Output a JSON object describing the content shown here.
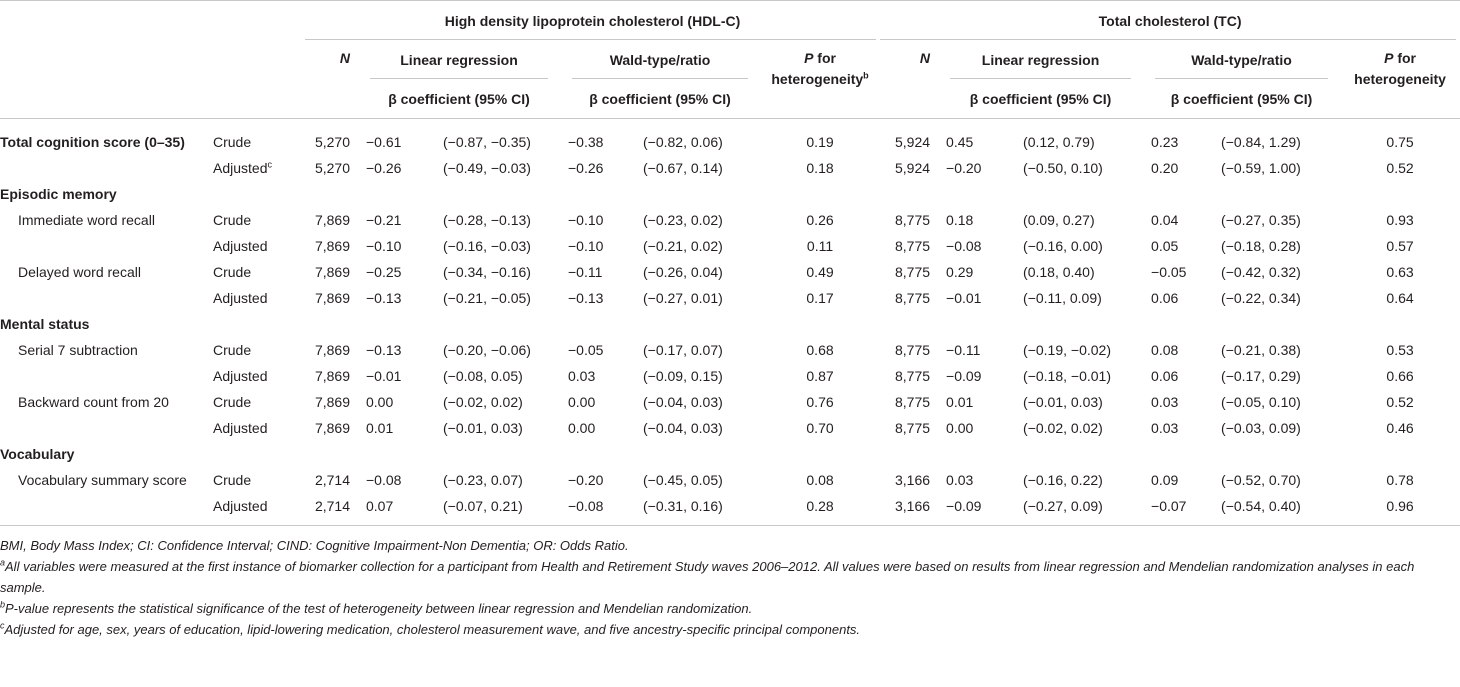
{
  "table": {
    "groups": [
      "High density lipoprotein cholesterol (HDL-C)",
      "Total cholesterol (TC)"
    ],
    "header": {
      "n": "N",
      "linear": "Linear regression",
      "wald": "Wald-type/ratio",
      "beta": "β coefficient (95% CI)",
      "p": "P",
      "p_rest": "for heterogeneity",
      "p_sup": "b"
    },
    "rows": [
      {
        "label": "Total cognition score (0–35)",
        "bold": true,
        "model": "Crude",
        "cells": [
          "5,270",
          "−0.61",
          "(−0.87, −0.35)",
          "−0.38",
          "(−0.82, 0.06)",
          "0.19",
          "5,924",
          "0.45",
          "(0.12, 0.79)",
          "0.23",
          "(−0.84, 1.29)",
          "0.75"
        ]
      },
      {
        "model": "Adjusted",
        "model_sup": "c",
        "cells": [
          "5,270",
          "−0.26",
          "(−0.49, −0.03)",
          "−0.26",
          "(−0.67, 0.14)",
          "0.18",
          "5,924",
          "−0.20",
          "(−0.50, 0.10)",
          "0.20",
          "(−0.59, 1.00)",
          "0.52"
        ]
      },
      {
        "section": "Episodic memory"
      },
      {
        "label": "Immediate word recall",
        "model": "Crude",
        "cells": [
          "7,869",
          "−0.21",
          "(−0.28, −0.13)",
          "−0.10",
          "(−0.23, 0.02)",
          "0.26",
          "8,775",
          "0.18",
          "(0.09, 0.27)",
          "0.04",
          "(−0.27, 0.35)",
          "0.93"
        ]
      },
      {
        "model": "Adjusted",
        "cells": [
          "7,869",
          "−0.10",
          "(−0.16, −0.03)",
          "−0.10",
          "(−0.21, 0.02)",
          "0.11",
          "8,775",
          "−0.08",
          "(−0.16, 0.00)",
          "0.05",
          "(−0.18, 0.28)",
          "0.57"
        ]
      },
      {
        "label": "Delayed word recall",
        "model": "Crude",
        "cells": [
          "7,869",
          "−0.25",
          "(−0.34, −0.16)",
          "−0.11",
          "(−0.26, 0.04)",
          "0.49",
          "8,775",
          "0.29",
          "(0.18, 0.40)",
          "−0.05",
          "(−0.42, 0.32)",
          "0.63"
        ]
      },
      {
        "model": "Adjusted",
        "cells": [
          "7,869",
          "−0.13",
          "(−0.21, −0.05)",
          "−0.13",
          "(−0.27, 0.01)",
          "0.17",
          "8,775",
          "−0.01",
          "(−0.11, 0.09)",
          "0.06",
          "(−0.22, 0.34)",
          "0.64"
        ]
      },
      {
        "section": "Mental status"
      },
      {
        "label": "Serial 7 subtraction",
        "model": "Crude",
        "cells": [
          "7,869",
          "−0.13",
          "(−0.20, −0.06)",
          "−0.05",
          "(−0.17, 0.07)",
          "0.68",
          "8,775",
          "−0.11",
          "(−0.19, −0.02)",
          "0.08",
          "(−0.21, 0.38)",
          "0.53"
        ]
      },
      {
        "model": "Adjusted",
        "cells": [
          "7,869",
          "−0.01",
          "(−0.08, 0.05)",
          "0.03",
          "(−0.09, 0.15)",
          "0.87",
          "8,775",
          "−0.09",
          "(−0.18, −0.01)",
          "0.06",
          "(−0.17, 0.29)",
          "0.66"
        ]
      },
      {
        "label": "Backward count from 20",
        "model": "Crude",
        "cells": [
          "7,869",
          "0.00",
          "(−0.02, 0.02)",
          "0.00",
          "(−0.04, 0.03)",
          "0.76",
          "8,775",
          "0.01",
          "(−0.01, 0.03)",
          "0.03",
          "(−0.05, 0.10)",
          "0.52"
        ]
      },
      {
        "model": "Adjusted",
        "cells": [
          "7,869",
          "0.01",
          "(−0.01, 0.03)",
          "0.00",
          "(−0.04, 0.03)",
          "0.70",
          "8,775",
          "0.00",
          "(−0.02, 0.02)",
          "0.03",
          "(−0.03, 0.09)",
          "0.46"
        ]
      },
      {
        "section": "Vocabulary"
      },
      {
        "label": "Vocabulary summary score",
        "model": "Crude",
        "cells": [
          "2,714",
          "−0.08",
          "(−0.23, 0.07)",
          "−0.20",
          "(−0.45, 0.05)",
          "0.08",
          "3,166",
          "0.03",
          "(−0.16, 0.22)",
          "0.09",
          "(−0.52, 0.70)",
          "0.78"
        ]
      },
      {
        "model": "Adjusted",
        "cells": [
          "2,714",
          "0.07",
          "(−0.07, 0.21)",
          "−0.08",
          "(−0.31, 0.16)",
          "0.28",
          "3,166",
          "−0.09",
          "(−0.27, 0.09)",
          "−0.07",
          "(−0.54, 0.40)",
          "0.96"
        ]
      }
    ],
    "notes": [
      {
        "text": "BMI, Body Mass Index; CI: Confidence Interval; CIND: Cognitive Impairment-Non Dementia; OR: Odds Ratio."
      },
      {
        "mark": "a",
        "text": "All variables were measured at the first instance of biomarker collection for a participant from Health and Retirement Study waves 2006–2012. All values were based on results from linear regression and Mendelian randomization analyses in each sample."
      },
      {
        "mark": "b",
        "text": "P-value represents the statistical significance of the test of heterogeneity between linear regression and Mendelian randomization."
      },
      {
        "mark": "c",
        "text": "Adjusted for age, sex, years of education, lipid-lowering medication, cholesterol measurement wave, and five ancestry-specific principal components."
      }
    ]
  }
}
